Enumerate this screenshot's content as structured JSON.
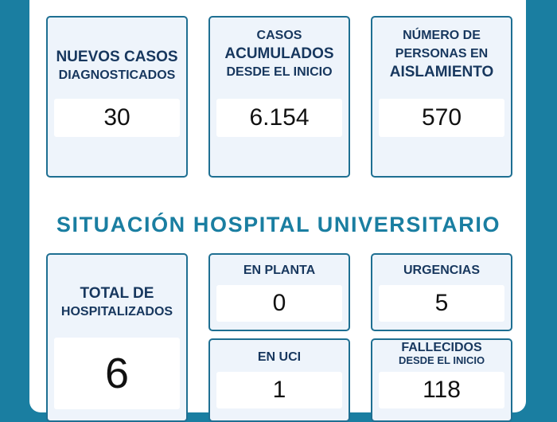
{
  "top_cards": [
    {
      "lines": [
        {
          "text": "NUEVOS CASOS",
          "big": true
        },
        {
          "text": "DIAGNOSTICADOS",
          "big": false
        }
      ],
      "value": "30"
    },
    {
      "lines": [
        {
          "text": "CASOS",
          "big": false
        },
        {
          "text": "ACUMULADOS",
          "big": true
        },
        {
          "text": "DESDE EL INICIO",
          "big": false
        }
      ],
      "value": "6.154"
    },
    {
      "lines": [
        {
          "text": "NÚMERO DE",
          "big": false
        },
        {
          "text": "PERSONAS EN",
          "big": false
        },
        {
          "text": "AISLAMIENTO",
          "big": true
        }
      ],
      "value": "570"
    }
  ],
  "section_title": "SITUACIÓN HOSPITAL UNIVERSITARIO",
  "hospital": {
    "total": {
      "line1": "TOTAL DE",
      "line2": "HOSPITALIZADOS",
      "value": "6"
    },
    "en_planta": {
      "label": "EN PLANTA",
      "value": "0"
    },
    "urgencias": {
      "label": "URGENCIAS",
      "value": "5"
    },
    "en_uci": {
      "label": "EN UCI",
      "value": "1"
    },
    "fallecidos": {
      "label": "FALLECIDOS",
      "sublabel": "DESDE EL INICIO",
      "value": "118"
    }
  }
}
